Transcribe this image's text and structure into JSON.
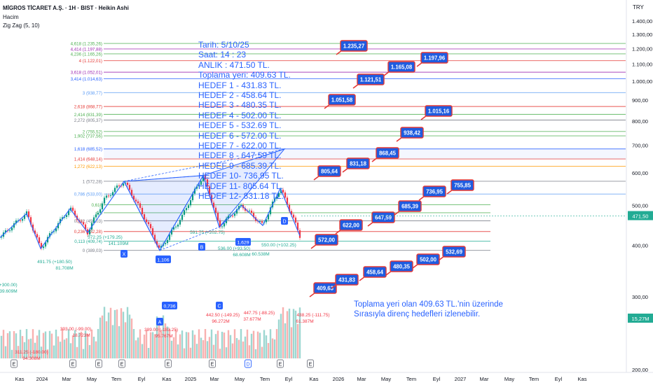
{
  "header": {
    "symbol_line": "MİGROS TİCARET A.Ş. · 1H · BIST · Heikin Ashi",
    "volume_label": "Hacim",
    "indicator_label": "Zig Zag (5, 10)",
    "currency": "TRY"
  },
  "notes": [
    "Tarih:    5/10/25",
    "Saat:      14 : 23",
    "ANLIK :   471.50 TL.",
    "Toplama yeri: 409.63 TL.",
    "HEDEF  1 - 431.83 TL.",
    "HEDEF  2 - 458.64 TL.",
    "HEDEF  3 - 480.35 TL.",
    "HEDEF  4 - 502.00 TL.",
    "HEDEF  5 - 532.69 TL.",
    "HEDEF  6 - 572.00 TL.",
    "HEDEF  7 - 622.00 TL.",
    "HEDEF  8 - 647.59 TL.",
    "HEDEF  9 - 685.39 TL.",
    "HEDEF 10- 736.95 TL.",
    "HEDEF 11- 805.64 TL.",
    "HEDEF 12- 831.18 TL."
  ],
  "bottom_note": [
    "Toplama yeri olan 409.63 TL.'nin üzerinde",
    "Sırasıyla direnç hedefleri izlenebilir."
  ],
  "chart_data": {
    "type": "candlestick",
    "y_scale": "log",
    "ylim": [
      195,
      1460
    ],
    "y_ticks": [
      {
        "v": 200,
        "label": "200,00"
      },
      {
        "v": 300,
        "label": "300,00"
      },
      {
        "v": 400,
        "label": "400,00"
      },
      {
        "v": 500,
        "label": "500,00"
      },
      {
        "v": 600,
        "label": "600,00"
      },
      {
        "v": 700,
        "label": "700,00"
      },
      {
        "v": 800,
        "label": "800,00"
      },
      {
        "v": 900,
        "label": "900,00"
      },
      {
        "v": 1000,
        "label": "1.000,00"
      },
      {
        "v": 1100,
        "label": "1.100,00"
      },
      {
        "v": 1200,
        "label": "1.200,00"
      },
      {
        "v": 1300,
        "label": "1.300,00"
      },
      {
        "v": 1400,
        "label": "1.400,00"
      }
    ],
    "x_labels": [
      "Kas",
      "2024",
      "Mar",
      "May",
      "Tem",
      "Eyl",
      "Kas",
      "2025",
      "Mar",
      "May",
      "Tem",
      "Eyl",
      "Kas",
      "2026",
      "Mar",
      "May",
      "Tem",
      "Eyl",
      "2027",
      "Mar",
      "May",
      "Tem",
      "Eyl",
      "Kas"
    ],
    "last_price": {
      "value": 471.5,
      "label": "471,50",
      "color": "#22ab94"
    },
    "volume_badge": {
      "label": "15,27M",
      "color": "#22ab94"
    },
    "fib_levels": [
      {
        "value": 1235.26,
        "label": "4,618 (1.235,26)",
        "color": "#4caf50"
      },
      {
        "value": 1197.88,
        "label": "4,414 (1.197,88)",
        "color": "#9c27b0"
      },
      {
        "value": 1165.26,
        "label": "4,236 (1.165,26)",
        "color": "#4caf50"
      },
      {
        "value": 1122.01,
        "label": "4 (1.122,01)",
        "color": "#e53935"
      },
      {
        "value": 1052.01,
        "label": "3,618 (1.052,01)",
        "color": "#9c27b0"
      },
      {
        "value": 1014.63,
        "label": "3,414 (1.014,63)",
        "color": "#2962ff"
      },
      {
        "value": 938.77,
        "label": "3 (938,77)",
        "color": "#5c9cf5"
      },
      {
        "value": 868.77,
        "label": "2,618 (868,77)",
        "color": "#e53935"
      },
      {
        "value": 831.39,
        "label": "2,414 (831,39)",
        "color": "#4caf50"
      },
      {
        "value": 805.37,
        "label": "2,272 (805,37)",
        "color": "#787b86"
      },
      {
        "value": 755.52,
        "label": "2 (755,52)",
        "color": "#4caf50"
      },
      {
        "value": 737.56,
        "label": "1,902 (737,56)",
        "color": "#4caf50"
      },
      {
        "value": 685.52,
        "label": "1,618 (685,52)",
        "color": "#2962ff"
      },
      {
        "value": 648.14,
        "label": "1,414 (648,14)",
        "color": "#e53935"
      },
      {
        "value": 622.13,
        "label": "1,272 (622,13)",
        "color": "#ff9800"
      },
      {
        "value": 572.28,
        "label": "1 (572,28)",
        "color": "#787b86"
      },
      {
        "value": 533,
        "label": "0,786 (533,00)",
        "color": "#5c9cf5"
      },
      {
        "value": 502,
        "label": "0,618",
        "color": "#4caf50"
      },
      {
        "value": 480,
        "label": "0,5",
        "color": "#4caf50"
      },
      {
        "value": 459.03,
        "label": "0,382 (459,03)",
        "color": "#787b86"
      },
      {
        "value": 432.28,
        "label": "0,236 (432,28)",
        "color": "#e53935"
      },
      {
        "value": 409.74,
        "label": "0,113 (409,74)",
        "color": "#22ab94"
      },
      {
        "value": 389.03,
        "label": "0 (389,03)",
        "color": "#787b86"
      }
    ],
    "targets": [
      {
        "label": "409,63",
        "value": 409.63
      },
      {
        "label": "431,83",
        "value": 431.83
      },
      {
        "label": "458,64",
        "value": 458.64
      },
      {
        "label": "480,35",
        "value": 480.35
      },
      {
        "label": "502,00",
        "value": 502.0
      },
      {
        "label": "532,69",
        "value": 532.69
      },
      {
        "label": "572,00",
        "value": 572.0
      },
      {
        "label": "622,00",
        "value": 622.0
      },
      {
        "label": "647,59",
        "value": 647.59
      },
      {
        "label": "685,39",
        "value": 685.39
      },
      {
        "label": "736,95",
        "value": 736.95
      },
      {
        "label": "755,85",
        "value": 755.85
      },
      {
        "label": "805,64",
        "value": 805.64
      },
      {
        "label": "831,18",
        "value": 831.18
      },
      {
        "label": "868,45",
        "value": 868.45
      },
      {
        "label": "938,42",
        "value": 938.42
      },
      {
        "label": "1.015,16",
        "value": 1015.16
      },
      {
        "label": "1.051,58",
        "value": 1051.58
      },
      {
        "label": "1.121,51",
        "value": 1121.51
      },
      {
        "label": "1.165,08",
        "value": 1165.08
      },
      {
        "label": "1.197,96",
        "value": 1197.96
      },
      {
        "label": "1.235,27",
        "value": 1235.27
      }
    ],
    "pattern_points": [
      {
        "name": "X",
        "value": 572
      },
      {
        "name": "A",
        "value": 389
      },
      {
        "name": "B",
        "value": 591
      },
      {
        "name": "C",
        "value": 443
      },
      {
        "name": "D",
        "value": 685
      }
    ],
    "pattern_ratios": [
      "1,106",
      "0,736",
      "1,629"
    ],
    "zigzag_labels": [
      "491.75 (+180.50)",
      "81.708M",
      "393.00 (-99.00)",
      "18.723M",
      "572.25 (+179.25)",
      "141.109M",
      "591.75 (+202.75)",
      "389.00 (-183.25)",
      "95.767M",
      "536.00 (+93.50)",
      "68.608M",
      "442.50 (-149.25)",
      "96.272M",
      "550.00 (+102.25)",
      "60.538M",
      "447.75 (-88.25)",
      "37.677M",
      "438.25 (-111.75)",
      "61.387M",
      "5 (+300.00)",
      "39.609M",
      "311.25 (-180.00)",
      "94.308M"
    ],
    "event_markers": [
      "E",
      "E",
      "E",
      "E",
      "E",
      "E",
      "D",
      "E",
      "E"
    ]
  }
}
